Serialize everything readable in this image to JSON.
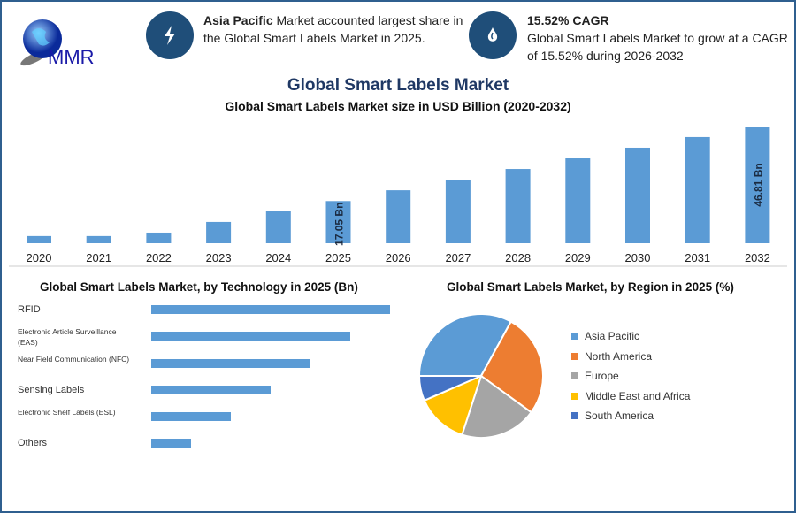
{
  "logo": {
    "text": "MMR"
  },
  "info1": {
    "bold": "Asia Pacific",
    "text": " Market accounted largest share in the Global Smart Labels Market in 2025.",
    "icon": "lightning-icon"
  },
  "info2": {
    "bold": "15.52% CAGR",
    "text": "Global Smart Labels Market to grow at a CAGR of 15.52% during 2026-2032",
    "icon": "drop-icon"
  },
  "title": "Global Smart Labels Market",
  "chart_data": [
    {
      "type": "bar",
      "title": "Global Smart Labels Market size in USD Billion (2020-2032)",
      "categories": [
        "2020",
        "2021",
        "2022",
        "2023",
        "2024",
        "2025",
        "2026",
        "2027",
        "2028",
        "2029",
        "2030",
        "2031",
        "2032"
      ],
      "values": [
        2.9,
        2.9,
        4.3,
        8.6,
        12.9,
        17.05,
        21.4,
        25.7,
        30.0,
        34.3,
        38.6,
        42.9,
        46.81
      ],
      "data_labels": {
        "2025": "17.05 Bn",
        "2032": "46.81 Bn"
      },
      "color": "#5b9bd5",
      "grid": false
    },
    {
      "type": "bar",
      "orientation": "horizontal",
      "title": "Global Smart Labels Market, by Technology in 2025 (Bn)",
      "categories": [
        "RFID",
        "Electronic Article Surveillance (EAS)",
        "Near Field Communication (NFC)",
        "Sensing Labels",
        "Electronic Shelf Labels (ESL)",
        "Others"
      ],
      "values": [
        6,
        5,
        4,
        3,
        2,
        1
      ],
      "color": "#5b9bd5",
      "grid": false
    },
    {
      "type": "pie",
      "title": "Global Smart Labels Market, by Region in 2025 (%)",
      "labels": [
        "Asia Pacific",
        "North America",
        "Europe",
        "Middle East and Africa",
        "South America"
      ],
      "values": [
        33,
        27,
        20,
        13.5,
        6.5
      ],
      "colors": [
        "#5b9bd5",
        "#ed7d31",
        "#a5a5a5",
        "#ffc000",
        "#4472c4"
      ],
      "legend": "right"
    }
  ]
}
